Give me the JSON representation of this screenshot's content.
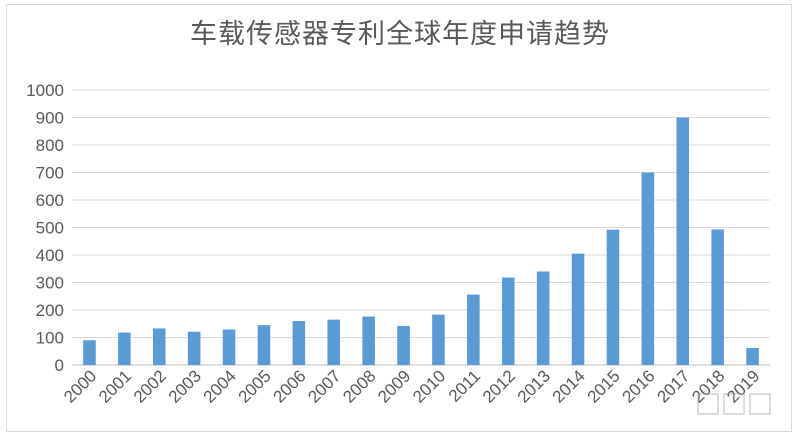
{
  "chart_data": {
    "type": "bar",
    "title": "车载传感器专利全球年度申请趋势",
    "xlabel": "",
    "ylabel": "",
    "ylim": [
      0,
      1000
    ],
    "yticks": [
      0,
      100,
      200,
      300,
      400,
      500,
      600,
      700,
      800,
      900,
      1000
    ],
    "grid": true,
    "legend": "none",
    "bar_color": "#5b9bd5",
    "categories": [
      "2000",
      "2001",
      "2002",
      "2003",
      "2004",
      "2005",
      "2006",
      "2007",
      "2008",
      "2009",
      "2010",
      "2011",
      "2012",
      "2013",
      "2014",
      "2015",
      "2016",
      "2017",
      "2018",
      "2019"
    ],
    "values": [
      90,
      118,
      133,
      121,
      129,
      145,
      160,
      165,
      176,
      142,
      183,
      256,
      318,
      340,
      405,
      492,
      700,
      900,
      493,
      62
    ]
  }
}
